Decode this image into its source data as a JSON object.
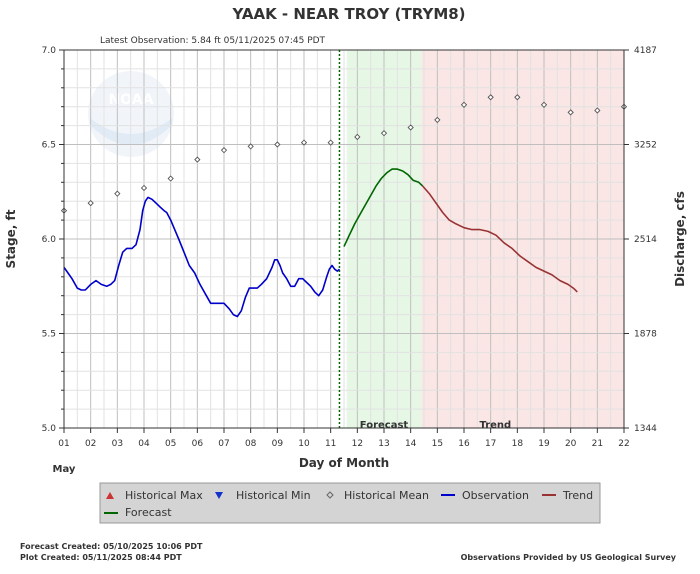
{
  "chart_data": {
    "type": "line",
    "title": "YAAK - NEAR TROY  (TRYM8)",
    "subtitle": "Latest Observation:  5.84 ft 05/11/2025 07:45 PDT",
    "xlabel": "Day of Month",
    "month_label": "May",
    "ylabel_left": "Stage, ft",
    "ylabel_right": "Discharge, cfs",
    "x_ticks": [
      "01",
      "02",
      "03",
      "04",
      "05",
      "06",
      "07",
      "08",
      "09",
      "10",
      "11",
      "12",
      "13",
      "14",
      "15",
      "16",
      "17",
      "18",
      "19",
      "20",
      "21",
      "22"
    ],
    "ylim": [
      5.0,
      7.0
    ],
    "y_ticks_left": [
      "5.0",
      "5.5",
      "6.0",
      "6.5",
      "7.0"
    ],
    "y_ticks_right": [
      {
        "stage": 5.0,
        "label": "1344"
      },
      {
        "stage": 5.5,
        "label": "1878"
      },
      {
        "stage": 6.0,
        "label": "2514"
      },
      {
        "stage": 6.5,
        "label": "3252"
      },
      {
        "stage": 7.0,
        "label": "4187"
      }
    ],
    "zone_labels": {
      "forecast": "Forecast",
      "trend": "Trend"
    },
    "latest_obs_day": 11.33,
    "forecast_zone": [
      11.6,
      14.4
    ],
    "trend_zone": [
      14.4,
      22
    ],
    "series": [
      {
        "name": "Observation",
        "color": "#0000cc",
        "x": [
          1.0,
          1.15,
          1.3,
          1.5,
          1.65,
          1.8,
          2.0,
          2.2,
          2.4,
          2.6,
          2.75,
          2.9,
          3.05,
          3.2,
          3.35,
          3.55,
          3.7,
          3.85,
          3.95,
          4.05,
          4.15,
          4.3,
          4.45,
          4.6,
          4.75,
          4.85,
          5.0,
          5.15,
          5.3,
          5.5,
          5.7,
          5.9,
          6.1,
          6.3,
          6.5,
          6.7,
          6.85,
          7.0,
          7.2,
          7.35,
          7.5,
          7.65,
          7.8,
          7.95,
          8.1,
          8.25,
          8.4,
          8.6,
          8.8,
          8.9,
          9.0,
          9.1,
          9.2,
          9.35,
          9.5,
          9.65,
          9.8,
          9.95,
          10.1,
          10.25,
          10.4,
          10.55,
          10.7,
          10.85,
          10.95,
          11.05,
          11.15,
          11.25,
          11.33
        ],
        "y": [
          5.85,
          5.82,
          5.79,
          5.74,
          5.73,
          5.73,
          5.76,
          5.78,
          5.76,
          5.75,
          5.76,
          5.78,
          5.86,
          5.93,
          5.95,
          5.95,
          5.97,
          6.05,
          6.15,
          6.2,
          6.22,
          6.21,
          6.19,
          6.17,
          6.15,
          6.14,
          6.1,
          6.05,
          6.0,
          5.93,
          5.86,
          5.82,
          5.76,
          5.71,
          5.66,
          5.66,
          5.66,
          5.66,
          5.63,
          5.6,
          5.59,
          5.62,
          5.69,
          5.74,
          5.74,
          5.74,
          5.76,
          5.79,
          5.85,
          5.89,
          5.89,
          5.86,
          5.82,
          5.79,
          5.75,
          5.75,
          5.79,
          5.79,
          5.77,
          5.75,
          5.72,
          5.7,
          5.73,
          5.8,
          5.84,
          5.86,
          5.84,
          5.83,
          5.84
        ]
      },
      {
        "name": "Forecast",
        "color": "#006600",
        "x": [
          11.5,
          11.7,
          11.9,
          12.1,
          12.3,
          12.5,
          12.7,
          12.9,
          13.1,
          13.3,
          13.5,
          13.7,
          13.9,
          14.1,
          14.3,
          14.45
        ],
        "y": [
          5.96,
          6.02,
          6.08,
          6.13,
          6.18,
          6.23,
          6.28,
          6.32,
          6.35,
          6.37,
          6.37,
          6.36,
          6.34,
          6.31,
          6.3,
          6.28
        ]
      },
      {
        "name": "Trend",
        "color": "#993333",
        "x": [
          14.45,
          14.7,
          14.95,
          15.2,
          15.45,
          15.7,
          16.0,
          16.3,
          16.6,
          16.9,
          17.2,
          17.5,
          17.8,
          18.1,
          18.4,
          18.7,
          19.0,
          19.3,
          19.6,
          19.9,
          20.1,
          20.25
        ],
        "y": [
          6.28,
          6.24,
          6.19,
          6.14,
          6.1,
          6.08,
          6.06,
          6.05,
          6.05,
          6.04,
          6.02,
          5.98,
          5.95,
          5.91,
          5.88,
          5.85,
          5.83,
          5.81,
          5.78,
          5.76,
          5.74,
          5.72
        ]
      },
      {
        "name": "Historical Mean",
        "color": "#666666",
        "x": [
          1,
          2,
          3,
          4,
          5,
          6,
          7,
          8,
          9,
          10,
          11,
          12,
          13,
          14,
          15,
          16,
          17,
          18,
          19,
          20,
          21,
          22
        ],
        "y": [
          6.15,
          6.19,
          6.24,
          6.27,
          6.32,
          6.42,
          6.47,
          6.49,
          6.5,
          6.51,
          6.51,
          6.54,
          6.56,
          6.59,
          6.63,
          6.71,
          6.75,
          6.75,
          6.71,
          6.67,
          6.68,
          6.7
        ]
      }
    ],
    "legend": [
      {
        "label": "Historical Max",
        "symbol": "triangle-up",
        "color": "#cc3333"
      },
      {
        "label": "Historical Min",
        "symbol": "triangle-down",
        "color": "#1133cc"
      },
      {
        "label": "Historical Mean",
        "symbol": "diamond",
        "color": "#666666"
      },
      {
        "label": "Observation",
        "symbol": "line",
        "color": "#0000cc"
      },
      {
        "label": "Trend",
        "symbol": "line",
        "color": "#993333"
      },
      {
        "label": "Forecast",
        "symbol": "line",
        "color": "#006600"
      }
    ]
  },
  "logo": {
    "text": "NOAA"
  },
  "footer": {
    "forecast_created": "Forecast Created: 05/10/2025 10:06 PDT",
    "plot_created": "Plot Created: 05/11/2025 08:44 PDT",
    "credit": "Observations Provided by US Geological Survey"
  }
}
